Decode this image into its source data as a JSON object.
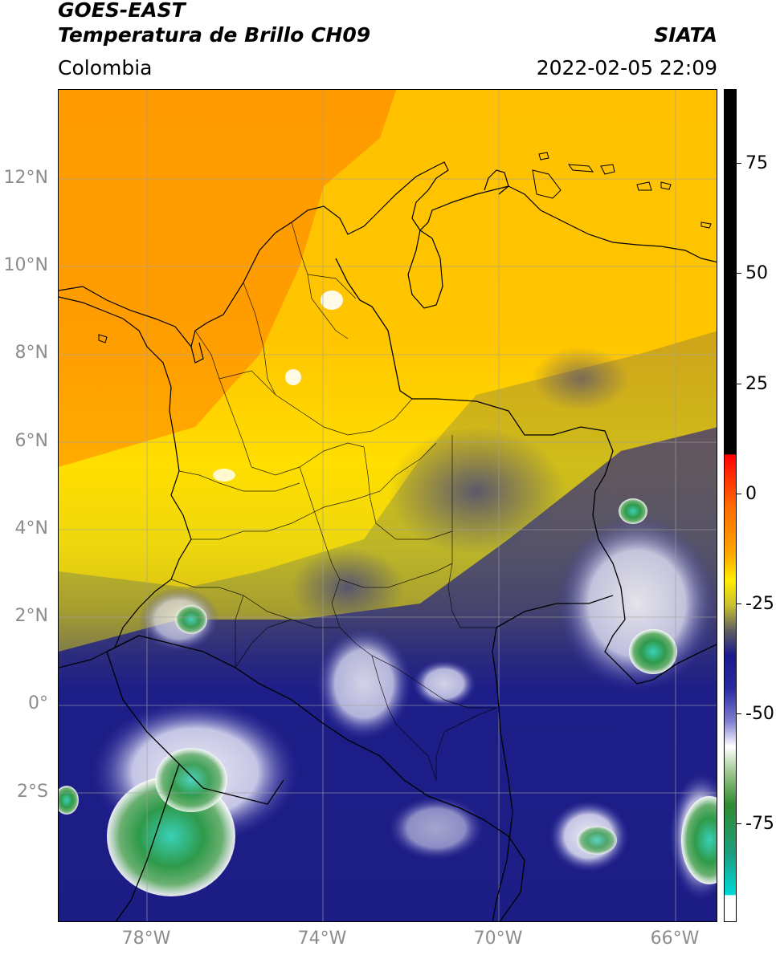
{
  "header": {
    "title_line1": "GOES-EAST",
    "title_line2": "Temperatura de Brillo CH09",
    "organization": "SIATA",
    "region": "Colombia",
    "timestamp": "2022-02-05 22:09"
  },
  "map": {
    "latitude_labels": [
      "12°N",
      "10°N",
      "8°N",
      "6°N",
      "4°N",
      "2°N",
      "0°",
      "2°S"
    ],
    "longitude_labels": [
      "78°W",
      "74°W",
      "70°W",
      "66°W"
    ],
    "gridline_color": "#a0a0a0",
    "border_color": "#000000"
  },
  "colorbar": {
    "tick_labels": [
      "75",
      "50",
      "25",
      "0",
      "-25",
      "-50",
      "-75"
    ],
    "colors": {
      "black": "#000000",
      "red": "#ff0000",
      "orange": "#ff8c00",
      "yellow": "#ffee00",
      "olive": "#a0a020",
      "navy": "#1a1a8c",
      "white": "#ffffff",
      "green": "#2e8b2e",
      "cyan": "#00d8d8"
    }
  }
}
